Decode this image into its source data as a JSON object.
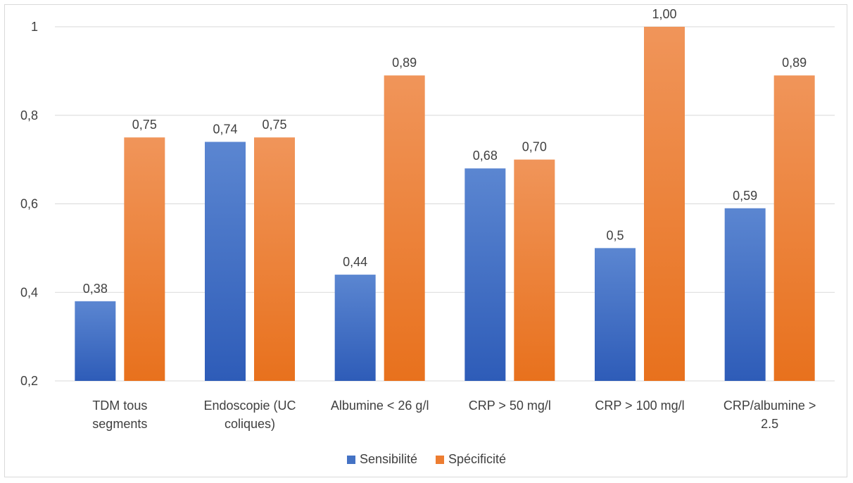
{
  "chart_data": {
    "type": "bar",
    "categories": [
      [
        "TDM tous",
        "segments"
      ],
      [
        "Endoscopie (UC",
        "coliques)"
      ],
      [
        "Albumine < 26 g/l"
      ],
      [
        "CRP > 50 mg/l"
      ],
      [
        "CRP > 100 mg/l"
      ],
      [
        "CRP/albumine >",
        "2.5"
      ]
    ],
    "series": [
      {
        "name": "Sensibilité",
        "values": [
          0.38,
          0.74,
          0.44,
          0.68,
          0.5,
          0.59
        ],
        "labels": [
          "0,38",
          "0,74",
          "0,44",
          "0,68",
          "0,5",
          "0,59"
        ],
        "color_top": "#5b86d1",
        "color_bottom": "#2e5cb8"
      },
      {
        "name": "Spécificité",
        "values": [
          0.75,
          0.75,
          0.89,
          0.7,
          1.0,
          0.89
        ],
        "labels": [
          "0,75",
          "0,75",
          "0,89",
          "0,70",
          "1,00",
          "0,89"
        ],
        "color_top": "#f0955a",
        "color_bottom": "#e8711d"
      }
    ],
    "ylim": [
      0.2,
      1.0
    ],
    "yticks": [
      0.2,
      0.4,
      0.6,
      0.8,
      1.0
    ],
    "ytick_labels": [
      "0,2",
      "0,4",
      "0,6",
      "0,8",
      "1"
    ],
    "grid": true,
    "legend_position": "bottom"
  }
}
